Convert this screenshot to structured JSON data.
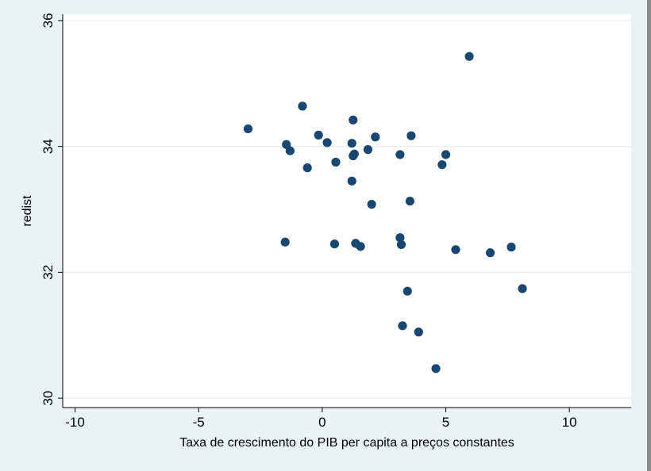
{
  "chart_data": {
    "type": "scatter",
    "title": "",
    "xlabel": "Taxa de crescimento do PIB per capita a preços constantes",
    "ylabel": "redist",
    "xlim": [
      -10.5,
      12.5
    ],
    "ylim": [
      29.85,
      36.1
    ],
    "xticks": [
      -10,
      -5,
      0,
      5,
      10
    ],
    "xtick_labels": [
      "-10",
      "-5",
      "0",
      "5",
      "10"
    ],
    "yticks": [
      30,
      32,
      34,
      36
    ],
    "ytick_labels": [
      "30",
      "32",
      "34",
      "36"
    ],
    "grid": true,
    "colors": {
      "background": "#eaf2f3",
      "plot_area": "#ffffff",
      "gridline": "#eaf2f3",
      "marker": "#1a476f"
    },
    "points": [
      {
        "x": -3.0,
        "y": 34.28
      },
      {
        "x": -0.8,
        "y": 34.64
      },
      {
        "x": -1.45,
        "y": 34.03
      },
      {
        "x": -1.3,
        "y": 33.93
      },
      {
        "x": -0.6,
        "y": 33.66
      },
      {
        "x": -0.15,
        "y": 34.18
      },
      {
        "x": 0.2,
        "y": 34.06
      },
      {
        "x": 0.55,
        "y": 33.75
      },
      {
        "x": 1.25,
        "y": 34.42
      },
      {
        "x": 1.2,
        "y": 34.05
      },
      {
        "x": 1.3,
        "y": 33.88
      },
      {
        "x": 1.25,
        "y": 33.85
      },
      {
        "x": 1.85,
        "y": 33.95
      },
      {
        "x": 2.15,
        "y": 34.15
      },
      {
        "x": 1.2,
        "y": 33.45
      },
      {
        "x": 3.15,
        "y": 33.87
      },
      {
        "x": 3.6,
        "y": 34.17
      },
      {
        "x": 4.85,
        "y": 33.71
      },
      {
        "x": 5.0,
        "y": 33.87
      },
      {
        "x": 5.95,
        "y": 35.43
      },
      {
        "x": 2.0,
        "y": 33.08
      },
      {
        "x": 3.55,
        "y": 33.13
      },
      {
        "x": -1.5,
        "y": 32.48
      },
      {
        "x": 0.5,
        "y": 32.45
      },
      {
        "x": 1.35,
        "y": 32.46
      },
      {
        "x": 1.55,
        "y": 32.41
      },
      {
        "x": 3.15,
        "y": 32.55
      },
      {
        "x": 3.2,
        "y": 32.44
      },
      {
        "x": 5.4,
        "y": 32.36
      },
      {
        "x": 6.8,
        "y": 32.31
      },
      {
        "x": 7.65,
        "y": 32.4
      },
      {
        "x": 8.1,
        "y": 31.74
      },
      {
        "x": 3.45,
        "y": 31.7
      },
      {
        "x": 3.25,
        "y": 31.15
      },
      {
        "x": 3.9,
        "y": 31.05
      },
      {
        "x": 4.6,
        "y": 30.47
      }
    ]
  }
}
